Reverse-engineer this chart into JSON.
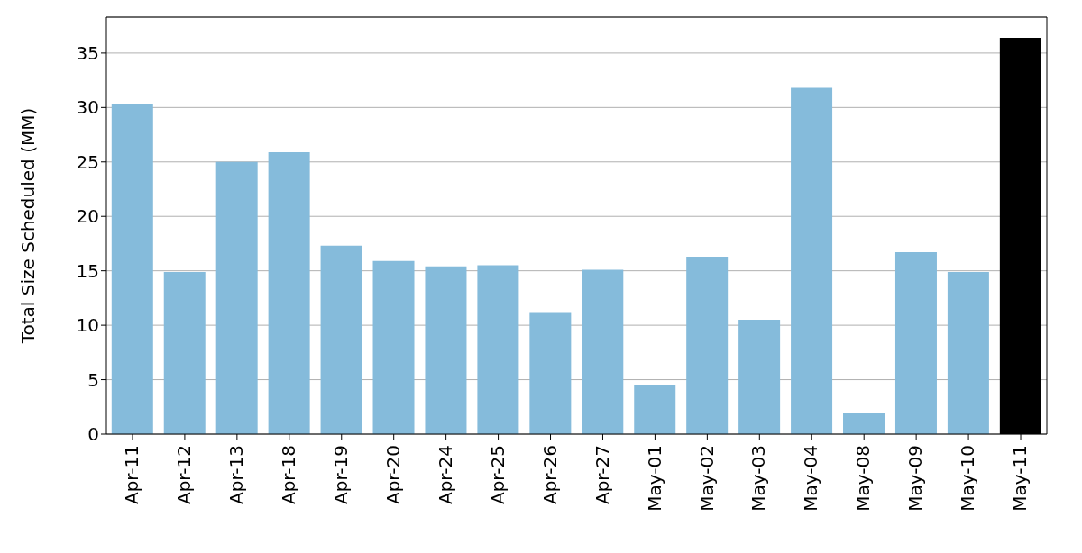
{
  "chart_data": {
    "type": "bar",
    "ylabel": "Total Size Scheduled (MM)",
    "categories": [
      "Apr-11",
      "Apr-12",
      "Apr-13",
      "Apr-18",
      "Apr-19",
      "Apr-20",
      "Apr-24",
      "Apr-25",
      "Apr-26",
      "Apr-27",
      "May-01",
      "May-02",
      "May-03",
      "May-04",
      "May-08",
      "May-09",
      "May-10",
      "May-11"
    ],
    "values": [
      30.3,
      14.9,
      25.0,
      25.9,
      17.3,
      15.9,
      15.4,
      15.5,
      11.2,
      15.1,
      4.5,
      16.3,
      10.5,
      31.8,
      1.9,
      16.7,
      14.9,
      36.4
    ],
    "colors": [
      "#85bbdb",
      "#85bbdb",
      "#85bbdb",
      "#85bbdb",
      "#85bbdb",
      "#85bbdb",
      "#85bbdb",
      "#85bbdb",
      "#85bbdb",
      "#85bbdb",
      "#85bbdb",
      "#85bbdb",
      "#85bbdb",
      "#85bbdb",
      "#85bbdb",
      "#85bbdb",
      "#85bbdb",
      "#000000"
    ],
    "ylim": [
      0,
      38.3
    ],
    "yticks": [
      0,
      5,
      10,
      15,
      20,
      25,
      30,
      35
    ],
    "grid": "y",
    "legend": false
  }
}
